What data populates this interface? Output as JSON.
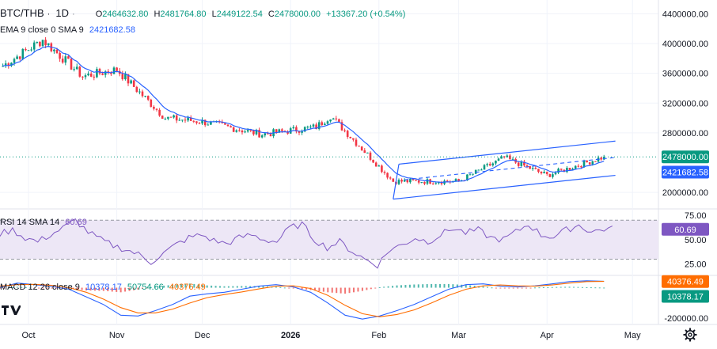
{
  "symbol": {
    "pair": "BTC/THB",
    "separator": "·",
    "interval": "1D",
    "more": "·",
    "ohlc": {
      "o_label": "O",
      "o": "2464632.80",
      "h_label": "H",
      "h": "2481764.80",
      "l_label": "L",
      "l": "2449122.54",
      "c_label": "C",
      "c": "2478000.00",
      "change": "+13367.20 (+0.54%)"
    }
  },
  "ema_legend": {
    "name": "EMA 9 close 0 SMA 9",
    "value": "2421682.58"
  },
  "rsi_legend": {
    "name": "RSI 14 SMA 14",
    "value": "60.69"
  },
  "macd_legend": {
    "name": "MACD 12 26 close 9",
    "v1": "10378.17",
    "v2": "50754.66",
    "v3": "40376.49"
  },
  "colors": {
    "up": "#089981",
    "down": "#f23645",
    "ema": "#2962ff",
    "channel": "#2962ff",
    "rsi": "#7e57c2",
    "rsi_band": "#ede7f6",
    "macd": "#2962ff",
    "signal": "#ff6d00",
    "grid": "#f0f3fa"
  },
  "chart_data": [
    {
      "type": "candlestick",
      "title": "BTC/THB · 1D",
      "x_labels": [
        "Oct",
        "Nov",
        "Dec",
        "2026",
        "Feb",
        "Mar",
        "Apr",
        "May"
      ],
      "y_ticks": [
        "4400000.00",
        "4000000.00",
        "3600000.00",
        "3200000.00",
        "2800000.00",
        "2000000.00"
      ],
      "ylim": [
        1800000,
        4500000
      ],
      "last_price": "2478000.00",
      "ema_value": "2421682.58",
      "x_start": "2025-09-21",
      "series_close_monthly": [
        {
          "date": "2025-09-22",
          "close": 3700000
        },
        {
          "date": "2025-10-06",
          "close": 4050000
        },
        {
          "date": "2025-10-20",
          "close": 3560000
        },
        {
          "date": "2025-11-01",
          "close": 3650000
        },
        {
          "date": "2025-11-18",
          "close": 3000000
        },
        {
          "date": "2025-12-01",
          "close": 2950000
        },
        {
          "date": "2025-12-22",
          "close": 2780000
        },
        {
          "date": "2026-01-10",
          "close": 2880000
        },
        {
          "date": "2026-01-15",
          "close": 3030000
        },
        {
          "date": "2026-02-06",
          "close": 2150000
        },
        {
          "date": "2026-03-01",
          "close": 2150000
        },
        {
          "date": "2026-03-17",
          "close": 2470000
        },
        {
          "date": "2026-04-01",
          "close": 2230000
        },
        {
          "date": "2026-04-21",
          "close": 2478000
        }
      ],
      "channel": {
        "upper": [
          {
            "date": "2026-02-08",
            "value": 2380000
          },
          {
            "date": "2026-04-25",
            "value": 2690000
          }
        ],
        "lower": [
          {
            "date": "2026-02-06",
            "value": 1910000
          },
          {
            "date": "2026-04-25",
            "value": 2230000
          }
        ],
        "mid": [
          {
            "date": "2026-02-10",
            "value": 2170000
          },
          {
            "date": "2026-04-25",
            "value": 2470000
          }
        ]
      }
    },
    {
      "type": "line",
      "title": "RSI 14 SMA 14",
      "y_ticks": [
        "75.00",
        "50.00",
        "25.00"
      ],
      "ylim": [
        15,
        80
      ],
      "bands": [
        30,
        70
      ],
      "last_value": "60.69",
      "samples": [
        56,
        60,
        52,
        48,
        55,
        62,
        70,
        58,
        50,
        44,
        40,
        35,
        27,
        36,
        45,
        52,
        55,
        49,
        46,
        52,
        55,
        50,
        48,
        62,
        66,
        50,
        42,
        48,
        38,
        30,
        24,
        40,
        45,
        52,
        48,
        55,
        62,
        57,
        60,
        52,
        50,
        58,
        66,
        55,
        53,
        60,
        65,
        58,
        61
      ]
    },
    {
      "type": "bar+line",
      "title": "MACD 12 26 close 9",
      "y_ticks": [
        "-200000.00"
      ],
      "ylim": [
        -230000,
        70000
      ],
      "macd_value": "10378.17",
      "signal_value": "40376.49",
      "histogram_last": "50754.66",
      "macd_samples": [
        0,
        30000,
        20000,
        8000,
        -10000,
        -60000,
        -110000,
        -180000,
        -185000,
        -150000,
        -110000,
        -55000,
        -40000,
        -30000,
        -10000,
        10000,
        20000,
        5000,
        -30000,
        -100000,
        -180000,
        -205000,
        -185000,
        -150000,
        -110000,
        -60000,
        -10000,
        20000,
        25000,
        10000,
        5000,
        12000,
        25000,
        40000,
        45000,
        42000
      ],
      "signal_samples": [
        10000,
        20000,
        22000,
        15000,
        0,
        -30000,
        -75000,
        -130000,
        -165000,
        -165000,
        -140000,
        -100000,
        -65000,
        -45000,
        -28000,
        -8000,
        10000,
        12000,
        -5000,
        -50000,
        -115000,
        -170000,
        -190000,
        -175000,
        -145000,
        -100000,
        -50000,
        -10000,
        12000,
        18000,
        12000,
        10000,
        18000,
        30000,
        40000,
        41000
      ]
    }
  ]
}
